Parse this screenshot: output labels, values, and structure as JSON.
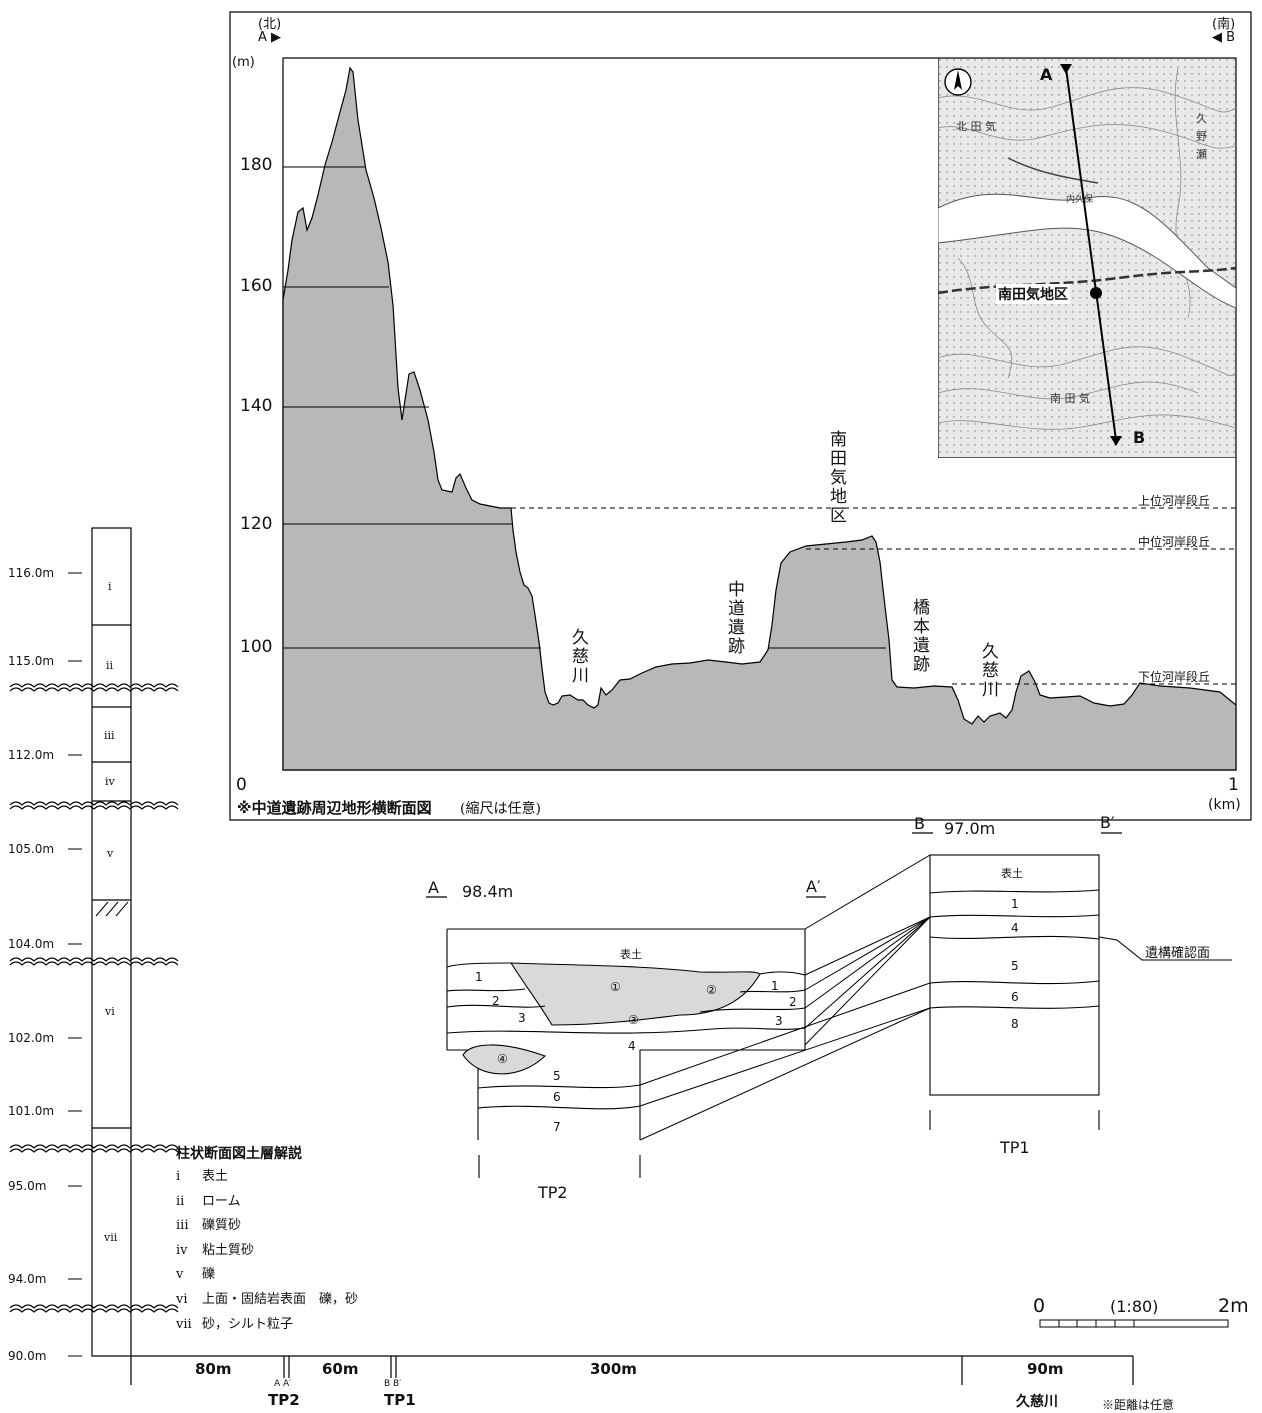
{
  "profile": {
    "north": "(北)",
    "south": "(南)",
    "point_a": "A ▶",
    "point_b": "◀ B",
    "y_unit": "(m)",
    "x_unit": "(km)",
    "y_ticks": [
      "180",
      "160",
      "140",
      "120",
      "100"
    ],
    "x_ticks": [
      "0",
      "1"
    ],
    "caption_bold": "※中道遺跡周辺地形横断面図",
    "caption_note": "(縮尺は任意)",
    "terraces": [
      "上位河岸段丘",
      "中位河岸段丘",
      "下位河岸段丘"
    ],
    "site_labels": [
      "南田気地区",
      "中道遺跡",
      "橋本遺跡",
      "久慈川",
      "久慈川"
    ],
    "terrain_color": "#b8b8b8"
  },
  "inset_map": {
    "point_a": "A",
    "point_b": "B",
    "district": "南田気地区",
    "place_labels": [
      "北 田 気",
      "久",
      "野",
      "瀬",
      "南 田 気",
      "内久保"
    ]
  },
  "column": {
    "elevations": [
      "116.0m",
      "115.0m",
      "112.0m",
      "105.0m",
      "104.0m",
      "102.0m",
      "101.0m",
      "95.0m",
      "94.0m",
      "90.0m"
    ],
    "layers": [
      "i",
      "ii",
      "iii",
      "iv",
      "v",
      "vi",
      "vii"
    ],
    "legend_title": "柱状断面図土層解説",
    "legend": [
      {
        "num": "i",
        "text": "表土"
      },
      {
        "num": "ii",
        "text": "ローム"
      },
      {
        "num": "iii",
        "text": "礫質砂"
      },
      {
        "num": "iv",
        "text": "粘土質砂"
      },
      {
        "num": "v",
        "text": "礫"
      },
      {
        "num": "vi",
        "text": "上面・固結岩表面　礫，砂"
      },
      {
        "num": "vii",
        "text": "砂，シルト粒子"
      }
    ]
  },
  "sections": {
    "tp2": {
      "a": "A",
      "a_prime": "A′",
      "elevation": "98.4m",
      "name": "TP2",
      "topsoil": "表土",
      "layers": [
        "1",
        "2",
        "3",
        "4",
        "5",
        "6",
        "7"
      ],
      "circled": [
        "①",
        "②",
        "③",
        "④"
      ],
      "feature_color": "#d9d9d9"
    },
    "tp1": {
      "b": "B",
      "b_prime": "B′",
      "elevation": "97.0m",
      "name": "TP1",
      "topsoil": "表土",
      "layers": [
        "1",
        "4",
        "5",
        "6",
        "8"
      ],
      "feature_label": "遺構確認面"
    }
  },
  "bottom_axis": {
    "distances": [
      "80m",
      "60m",
      "300m",
      "90m"
    ],
    "tp2_marks": "A A′",
    "tp2_label": "TP2",
    "tp1_marks": "B B′",
    "tp1_label": "TP1",
    "river": "久慈川",
    "footnote": "※距離は任意"
  },
  "scale_bar": {
    "start": "0",
    "ratio": "(1:80)",
    "end": "2m"
  }
}
